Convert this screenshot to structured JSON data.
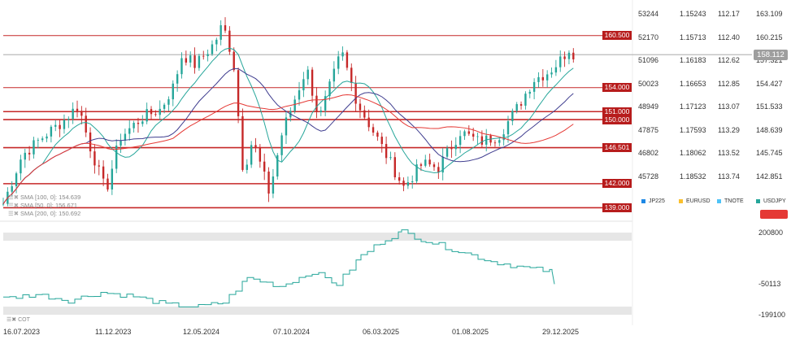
{
  "chart_data": [
    {
      "type": "candlestick",
      "symbol": "USDJPY",
      "ylim": [
        138.5,
        164.0
      ],
      "right_axes": [
        {
          "name": "JP225",
          "color": "#1e88e5",
          "ticks": [
            "53244",
            "52170",
            "51096",
            "50023",
            "48949",
            "47875",
            "46802",
            "45728"
          ]
        },
        {
          "name": "EURUSD",
          "color": "#fbc02d",
          "ticks": [
            "1.15243",
            "1.15713",
            "1.16183",
            "1.16653",
            "1.17123",
            "1.17593",
            "1.18062",
            "1.18532"
          ]
        },
        {
          "name": "TNOTE",
          "color": "#4fc3f7",
          "ticks": [
            "112.17",
            "112.40",
            "112.62",
            "112.85",
            "113.07",
            "113.29",
            "113.52",
            "113.74"
          ]
        },
        {
          "name": "USDJPY",
          "color": "#26a69a",
          "ticks": [
            "163.109",
            "160.215",
            "157.321",
            "154.427",
            "151.533",
            "148.639",
            "145.745",
            "142.851"
          ]
        }
      ],
      "tick_values": [
        163.109,
        160.215,
        157.321,
        154.427,
        151.533,
        148.639,
        145.745,
        142.851
      ],
      "horizontal_levels": [
        "160.500",
        "154.000",
        "151.000",
        "150.000",
        "146.501",
        "142.000",
        "139.000"
      ],
      "current_price": "158.112",
      "x_tick_labels": [
        "16.07.2023",
        "11.12.2023",
        "12.05.2024",
        "07.10.2024",
        "06.03.2025",
        "01.08.2025",
        "29.12.2025"
      ],
      "close_path": [
        [
          "2023-07-16",
          139.5
        ],
        [
          "2023-08-15",
          145.5
        ],
        [
          "2023-09-20",
          148.0
        ],
        [
          "2023-10-20",
          149.8
        ],
        [
          "2023-11-14",
          151.8
        ],
        [
          "2023-12-01",
          147.0
        ],
        [
          "2023-12-28",
          141.0
        ],
        [
          "2024-01-20",
          147.8
        ],
        [
          "2024-02-25",
          150.3
        ],
        [
          "2024-03-25",
          151.3
        ],
        [
          "2024-04-15",
          154.2
        ],
        [
          "2024-04-29",
          158.2
        ],
        [
          "2024-05-20",
          156.8
        ],
        [
          "2024-06-20",
          159.6
        ],
        [
          "2024-07-03",
          161.9
        ],
        [
          "2024-07-20",
          157.5
        ],
        [
          "2024-08-05",
          143.5
        ],
        [
          "2024-08-20",
          147.5
        ],
        [
          "2024-09-16",
          140.8
        ],
        [
          "2024-10-07",
          148.5
        ],
        [
          "2024-11-15",
          156.5
        ],
        [
          "2024-12-05",
          150.0
        ],
        [
          "2025-01-10",
          158.5
        ],
        [
          "2025-02-05",
          152.0
        ],
        [
          "2025-03-06",
          148.0
        ],
        [
          "2025-04-20",
          141.6
        ],
        [
          "2025-05-20",
          144.5
        ],
        [
          "2025-06-15",
          144.0
        ],
        [
          "2025-07-20",
          148.5
        ],
        [
          "2025-08-20",
          147.2
        ],
        [
          "2025-09-20",
          148.0
        ],
        [
          "2025-10-20",
          151.5
        ],
        [
          "2025-11-15",
          155.0
        ],
        [
          "2025-12-10",
          156.0
        ],
        [
          "2025-12-29",
          157.5
        ],
        [
          "2026-01-12",
          159.0
        ],
        [
          "2026-01-20",
          158.1
        ]
      ],
      "indicators": [
        {
          "label": "SMA [100, 0]: 154.639",
          "color": "#3f3d8f"
        },
        {
          "label": "SMA [50, 0]: 156.671",
          "color": "#26a69a"
        },
        {
          "label": "SMA [200, 0]: 150.692",
          "color": "#e53935"
        }
      ]
    },
    {
      "type": "line",
      "name": "COT",
      "axis_labels": [
        "200800",
        "-50113",
        "-199100"
      ],
      "tick_values": [
        200800,
        -50113,
        -199100
      ]
    }
  ]
}
